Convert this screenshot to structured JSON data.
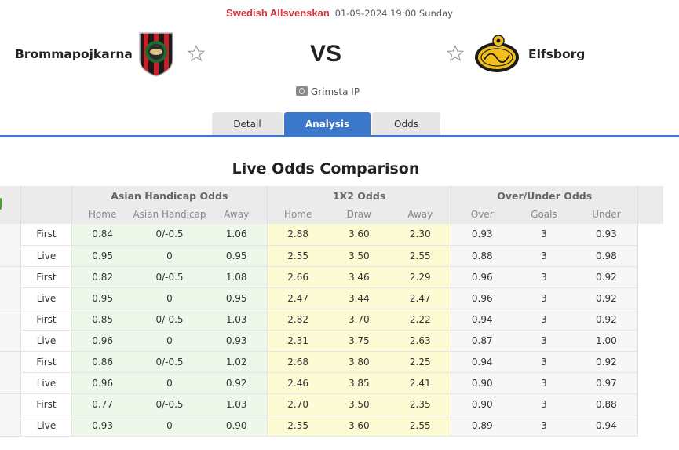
{
  "match": {
    "league": "Swedish Allsvenskan",
    "datetime": "01-09-2024 19:00 Sunday",
    "vs_label": "VS",
    "venue": "Grimsta IP",
    "venue_icon": "stadium-icon",
    "home_team": {
      "name": "Brommapojkarna",
      "logo": "brommapojkarna-crest",
      "favorite_icon": "star-outline-icon"
    },
    "away_team": {
      "name": "Elfsborg",
      "logo": "elfsborg-crest",
      "favorite_icon": "star-outline-icon"
    }
  },
  "tabs": [
    {
      "label": "Detail",
      "active": false
    },
    {
      "label": "Analysis",
      "active": true
    },
    {
      "label": "Odds",
      "active": false
    }
  ],
  "colors": {
    "league_red": "#d9343b",
    "accent_blue": "#3b78c9",
    "asian_handicap_bg": "#eef8ea",
    "x12_bg": "#fdfbd3",
    "over_under_bg": "#f7f7f7"
  },
  "odds_comparison": {
    "title": "Live Odds Comparison",
    "groups": [
      "Asian Handicap Odds",
      "1X2 Odds",
      "Over/Under Odds"
    ],
    "sub_headers": {
      "asian_handicap": [
        "Home",
        "Asian Handicap",
        "Away"
      ],
      "x12": [
        "Home",
        "Draw",
        "Away"
      ],
      "over_under": [
        "Over",
        "Goals",
        "Under"
      ]
    },
    "bookmakers": [
      {
        "rows": [
          {
            "type": "First",
            "ah": [
              "0.84",
              "0/-0.5",
              "1.06"
            ],
            "x12": [
              "2.88",
              "3.60",
              "2.30"
            ],
            "ou": [
              "0.93",
              "3",
              "0.93"
            ]
          },
          {
            "type": "Live",
            "ah": [
              "0.95",
              "0",
              "0.95"
            ],
            "x12": [
              "2.55",
              "3.50",
              "2.55"
            ],
            "ou": [
              "0.88",
              "3",
              "0.98"
            ]
          }
        ]
      },
      {
        "rows": [
          {
            "type": "First",
            "ah": [
              "0.82",
              "0/-0.5",
              "1.08"
            ],
            "x12": [
              "2.66",
              "3.46",
              "2.29"
            ],
            "ou": [
              "0.96",
              "3",
              "0.92"
            ]
          },
          {
            "type": "Live",
            "ah": [
              "0.95",
              "0",
              "0.95"
            ],
            "x12": [
              "2.47",
              "3.44",
              "2.47"
            ],
            "ou": [
              "0.96",
              "3",
              "0.92"
            ]
          }
        ]
      },
      {
        "rows": [
          {
            "type": "First",
            "ah": [
              "0.85",
              "0/-0.5",
              "1.03"
            ],
            "x12": [
              "2.82",
              "3.70",
              "2.22"
            ],
            "ou": [
              "0.94",
              "3",
              "0.92"
            ]
          },
          {
            "type": "Live",
            "ah": [
              "0.96",
              "0",
              "0.93"
            ],
            "x12": [
              "2.31",
              "3.75",
              "2.63"
            ],
            "ou": [
              "0.87",
              "3",
              "1.00"
            ]
          }
        ]
      },
      {
        "rows": [
          {
            "type": "First",
            "ah": [
              "0.86",
              "0/-0.5",
              "1.02"
            ],
            "x12": [
              "2.68",
              "3.80",
              "2.25"
            ],
            "ou": [
              "0.94",
              "3",
              "0.92"
            ]
          },
          {
            "type": "Live",
            "ah": [
              "0.96",
              "0",
              "0.92"
            ],
            "x12": [
              "2.46",
              "3.85",
              "2.41"
            ],
            "ou": [
              "0.90",
              "3",
              "0.97"
            ]
          }
        ]
      },
      {
        "rows": [
          {
            "type": "First",
            "ah": [
              "0.77",
              "0/-0.5",
              "1.03"
            ],
            "x12": [
              "2.70",
              "3.50",
              "2.35"
            ],
            "ou": [
              "0.90",
              "3",
              "0.88"
            ]
          },
          {
            "type": "Live",
            "ah": [
              "0.93",
              "0",
              "0.90"
            ],
            "x12": [
              "2.55",
              "3.60",
              "2.55"
            ],
            "ou": [
              "0.89",
              "3",
              "0.94"
            ]
          }
        ]
      }
    ]
  }
}
